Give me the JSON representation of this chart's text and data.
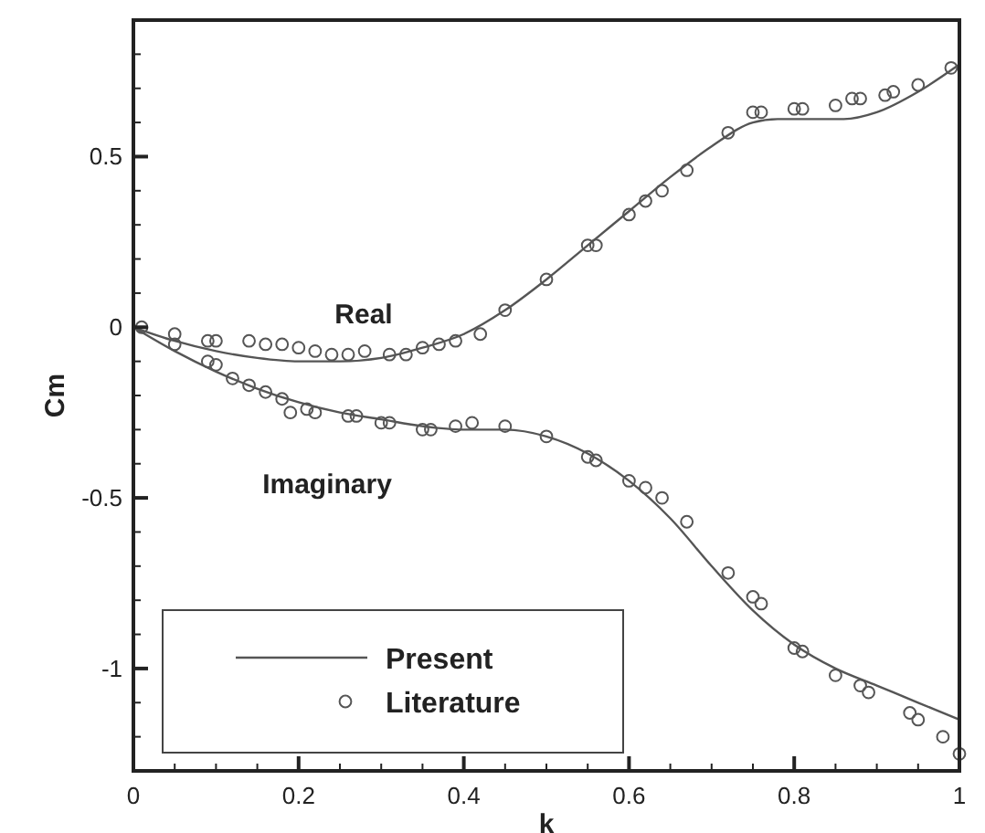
{
  "chart_data": {
    "type": "line",
    "xlabel": "k",
    "ylabel": "Cm",
    "xlim": [
      0,
      1
    ],
    "ylim": [
      -1.3,
      0.9
    ],
    "xticks": [
      0,
      {
        "value": 0.05,
        "label": null
      },
      {
        "value": 0.1,
        "label": null
      },
      {
        "value": 0.15,
        "label": null
      },
      0.2,
      {
        "value": 0.25,
        "label": null
      },
      {
        "value": 0.3,
        "label": null
      },
      {
        "value": 0.35,
        "label": null
      },
      0.4,
      {
        "value": 0.45,
        "label": null
      },
      {
        "value": 0.5,
        "label": null
      },
      {
        "value": 0.55,
        "label": null
      },
      0.6,
      {
        "value": 0.65,
        "label": null
      },
      {
        "value": 0.7,
        "label": null
      },
      {
        "value": 0.75,
        "label": null
      },
      0.8,
      {
        "value": 0.85,
        "label": null
      },
      {
        "value": 0.9,
        "label": null
      },
      {
        "value": 0.95,
        "label": null
      },
      1
    ],
    "yticks": [
      {
        "value": -1.2,
        "label": null
      },
      {
        "value": -1.1,
        "label": null
      },
      -1,
      {
        "value": -0.9,
        "label": null
      },
      {
        "value": -0.8,
        "label": null
      },
      {
        "value": -0.7,
        "label": null
      },
      {
        "value": -0.6,
        "label": null
      },
      -0.5,
      {
        "value": -0.4,
        "label": null
      },
      {
        "value": -0.3,
        "label": null
      },
      {
        "value": -0.2,
        "label": null
      },
      {
        "value": -0.1,
        "label": null
      },
      0,
      {
        "value": 0.1,
        "label": null
      },
      {
        "value": 0.2,
        "label": null
      },
      {
        "value": 0.3,
        "label": null
      },
      {
        "value": 0.4,
        "label": null
      },
      0.5,
      {
        "value": 0.6,
        "label": null
      },
      {
        "value": 0.7,
        "label": null
      },
      {
        "value": 0.8,
        "label": null
      }
    ],
    "grid": false,
    "legend": "bottom left",
    "annotations": [
      "Real",
      "Imaginary"
    ],
    "series": [
      {
        "name": "Present",
        "color": "#555555",
        "marker": "none",
        "line_style": "solid",
        "x": [
          0,
          0.05,
          0.1,
          0.15,
          0.2,
          0.25,
          0.3,
          0.35,
          0.4,
          0.45,
          0.5,
          0.55,
          0.6,
          0.65,
          0.7,
          0.75,
          0.78,
          0.82,
          0.86,
          0.9,
          0.95,
          1
        ],
        "values": [
          0,
          -0.04,
          -0.07,
          -0.09,
          -0.1,
          -0.1,
          -0.09,
          -0.06,
          -0.02,
          0.05,
          0.14,
          0.24,
          0.34,
          0.44,
          0.53,
          0.6,
          0.61,
          0.61,
          0.61,
          0.63,
          0.69,
          0.77
        ]
      },
      {
        "color": "#555555",
        "marker": "none",
        "line_style": "solid",
        "x": [
          0,
          0.05,
          0.1,
          0.15,
          0.2,
          0.25,
          0.3,
          0.35,
          0.4,
          0.45,
          0.5,
          0.55,
          0.6,
          0.65,
          0.7,
          0.75,
          0.8,
          0.85,
          0.9,
          0.95,
          1
        ],
        "values": [
          0,
          -0.07,
          -0.13,
          -0.18,
          -0.22,
          -0.25,
          -0.27,
          -0.29,
          -0.3,
          -0.3,
          -0.32,
          -0.37,
          -0.45,
          -0.56,
          -0.7,
          -0.83,
          -0.93,
          -1,
          -1.05,
          -1.1,
          -1.15
        ]
      },
      {
        "name": "Literature",
        "type": "scatter",
        "color": "#555555",
        "marker": "circle",
        "x": [
          0.01,
          0.05,
          0.09,
          0.1,
          0.14,
          0.16,
          0.18,
          0.2,
          0.22,
          0.24,
          0.26,
          0.28,
          0.31,
          0.33,
          0.35,
          0.37,
          0.39,
          0.42,
          0.45,
          0.5,
          0.55,
          0.56,
          0.6,
          0.62,
          0.64,
          0.67,
          0.72,
          0.75,
          0.76,
          0.8,
          0.81,
          0.85,
          0.87,
          0.88,
          0.91,
          0.92,
          0.95,
          0.99
        ],
        "values": [
          0,
          -0.02,
          -0.04,
          -0.04,
          -0.04,
          -0.05,
          -0.05,
          -0.06,
          -0.07,
          -0.08,
          -0.08,
          -0.07,
          -0.08,
          -0.08,
          -0.06,
          -0.05,
          -0.04,
          -0.02,
          0.05,
          0.14,
          0.24,
          0.24,
          0.33,
          0.37,
          0.4,
          0.46,
          0.57,
          0.63,
          0.63,
          0.64,
          0.64,
          0.65,
          0.67,
          0.67,
          0.68,
          0.69,
          0.71,
          0.76
        ]
      },
      {
        "type": "scatter",
        "color": "#555555",
        "marker": "circle",
        "x": [
          0.05,
          0.09,
          0.1,
          0.12,
          0.14,
          0.16,
          0.18,
          0.19,
          0.21,
          0.22,
          0.26,
          0.27,
          0.3,
          0.31,
          0.35,
          0.36,
          0.39,
          0.41,
          0.45,
          0.5,
          0.55,
          0.56,
          0.6,
          0.62,
          0.64,
          0.67,
          0.72,
          0.75,
          0.76,
          0.8,
          0.81,
          0.85,
          0.88,
          0.89,
          0.94,
          0.95,
          0.98,
          1
        ],
        "values": [
          -0.05,
          -0.1,
          -0.11,
          -0.15,
          -0.17,
          -0.19,
          -0.21,
          -0.25,
          -0.24,
          -0.25,
          -0.26,
          -0.26,
          -0.28,
          -0.28,
          -0.3,
          -0.3,
          -0.29,
          -0.28,
          -0.29,
          -0.32,
          -0.38,
          -0.39,
          -0.45,
          -0.47,
          -0.5,
          -0.57,
          -0.72,
          -0.79,
          -0.81,
          -0.94,
          -0.95,
          -1.02,
          -1.05,
          -1.07,
          -1.13,
          -1.15,
          -1.2,
          -1.25
        ]
      }
    ]
  }
}
